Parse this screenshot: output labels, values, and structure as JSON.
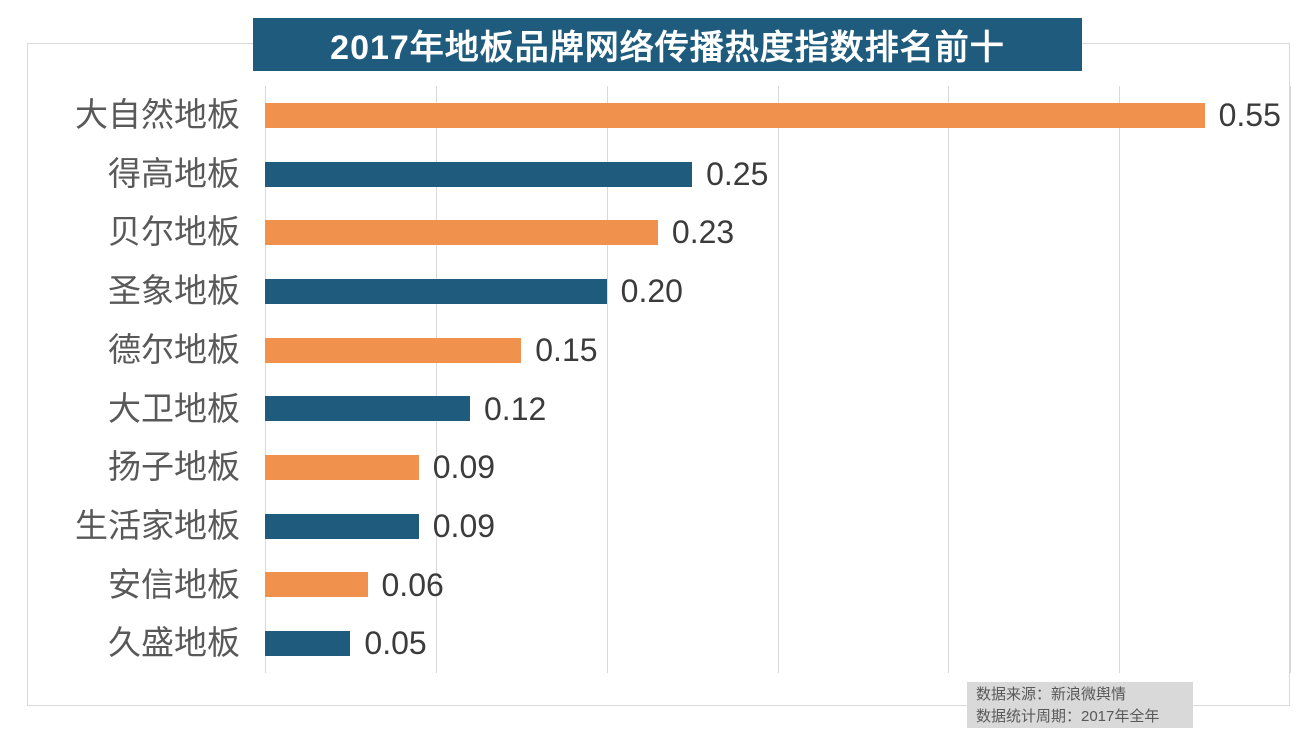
{
  "title": "2017年地板品牌网络传播热度指数排名前十",
  "footer": {
    "source_line": "数据来源：新浪微舆情",
    "period_line": "数据统计周期：2017年全年"
  },
  "colors": {
    "title_bg": "#1e5b7d",
    "bar_orange": "#f0924e",
    "bar_blue": "#1e5b7d",
    "grid": "#d9d9d9",
    "category_text": "#595959",
    "value_text": "#3b3b3b",
    "footer_bg": "#d9d9d9",
    "footer_text": "#595959"
  },
  "chart_data": {
    "type": "bar",
    "orientation": "horizontal",
    "title": "2017年地板品牌网络传播热度指数排名前十",
    "categories": [
      "大自然地板",
      "得高地板",
      "贝尔地板",
      "圣象地板",
      "德尔地板",
      "大卫地板",
      "扬子地板",
      "生活家地板",
      "安信地板",
      "久盛地板"
    ],
    "values": [
      0.55,
      0.25,
      0.23,
      0.2,
      0.15,
      0.12,
      0.09,
      0.09,
      0.06,
      0.05
    ],
    "value_labels": [
      "0.55",
      "0.25",
      "0.23",
      "0.20",
      "0.15",
      "0.12",
      "0.09",
      "0.09",
      "0.06",
      "0.05"
    ],
    "xlim": [
      0,
      0.6
    ],
    "gridline_interval": 0.1,
    "grid": true,
    "legend": false,
    "bar_color_pattern": [
      "#f0924e",
      "#1e5b7d"
    ],
    "source": "数据来源：新浪微舆情",
    "period": "数据统计周期：2017年全年"
  }
}
